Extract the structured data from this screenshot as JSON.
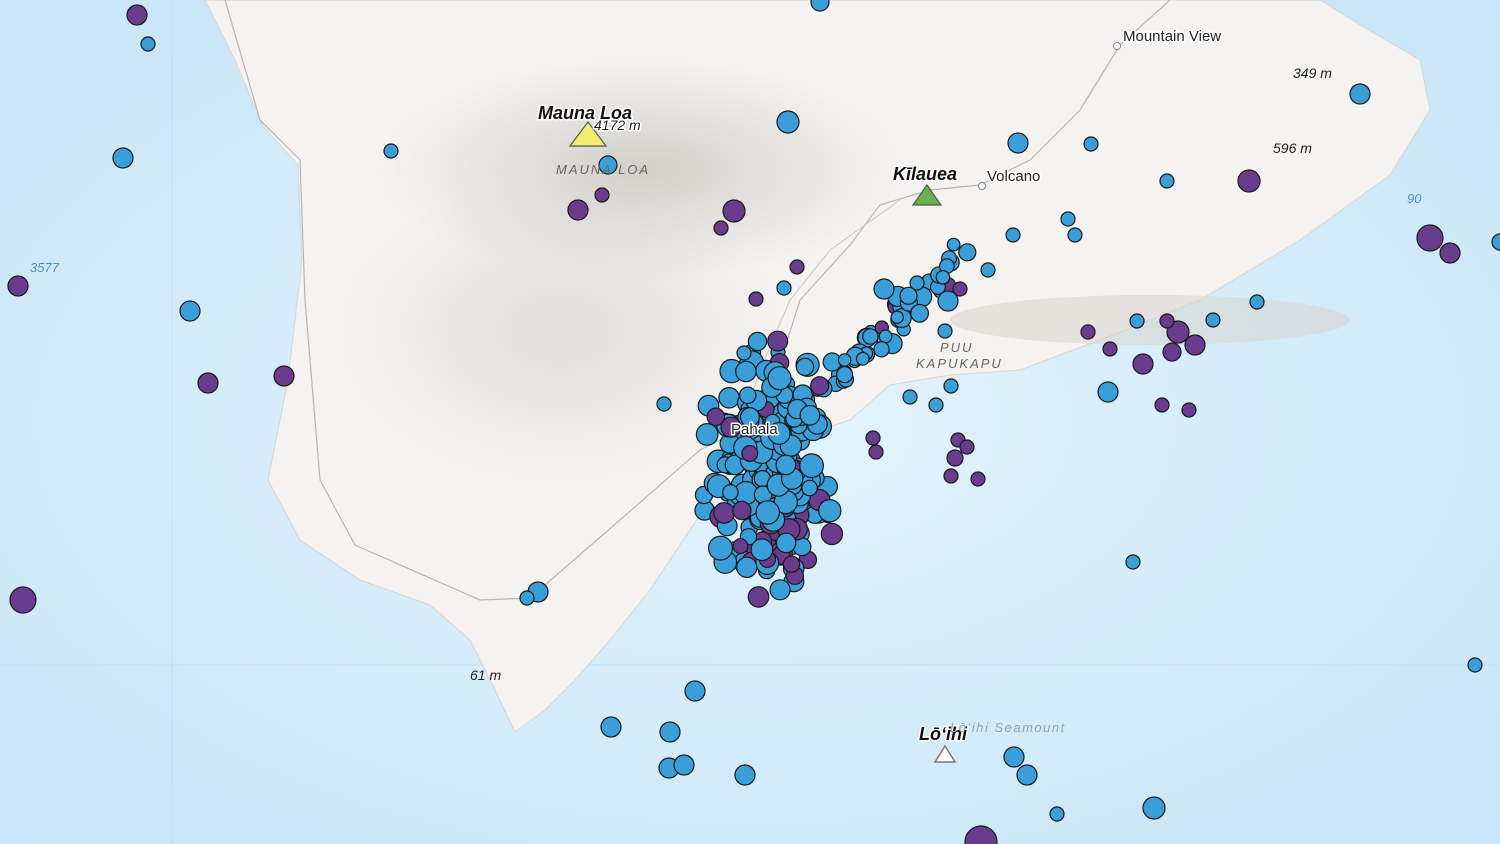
{
  "labels": {
    "mauna_loa": "Mauna Loa",
    "mauna_loa_elevation": "4172 m",
    "mauna_loa_area": "MAUNA LOA",
    "kilauea": "Kīlauea",
    "volcano": "Volcano",
    "mountain_view": "Mountain View",
    "elevation_349": "349 m",
    "elevation_596": "596 m",
    "depth_90": "90",
    "depth_3577": "3577",
    "puu_kapukapu_line1": "PUU",
    "puu_kapukapu_line2": "KAPUKAPU",
    "pahala": "Pahala",
    "elevation_61": "61 m",
    "loihi": "Lōʻihi",
    "loihi_seamount": "Lōʻihi Seamount"
  }
}
